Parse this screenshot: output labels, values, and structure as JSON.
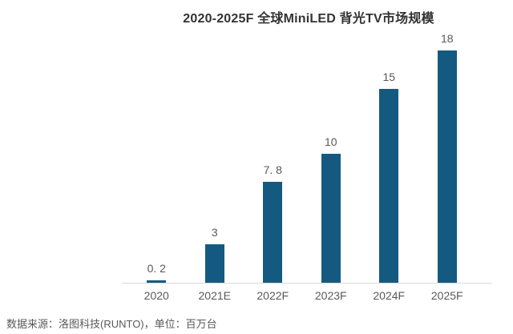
{
  "chart": {
    "title": "2020-2025F 全球MiniLED 背光TV市场规模",
    "source_note": "数据来源：洛图科技(RUNTO)，单位：百万台"
  },
  "chart_data": {
    "type": "bar",
    "title": "2020-2025F 全球MiniLED 背光TV市场规模",
    "categories": [
      "2020",
      "2021E",
      "2022F",
      "2023F",
      "2024F",
      "2025F"
    ],
    "values": [
      0.2,
      3,
      7.8,
      10,
      15,
      18
    ],
    "value_labels": [
      "0. 2",
      "3",
      "7. 8",
      "10",
      "15",
      "18"
    ],
    "xlabel": "",
    "ylabel": "",
    "unit": "百万台",
    "ylim": [
      0,
      18
    ],
    "grid": false,
    "legend": false,
    "bar_color": "#145a80",
    "axis_line_color": "#d9d9d9",
    "label_color": "#595959",
    "title_color": "#333333"
  }
}
